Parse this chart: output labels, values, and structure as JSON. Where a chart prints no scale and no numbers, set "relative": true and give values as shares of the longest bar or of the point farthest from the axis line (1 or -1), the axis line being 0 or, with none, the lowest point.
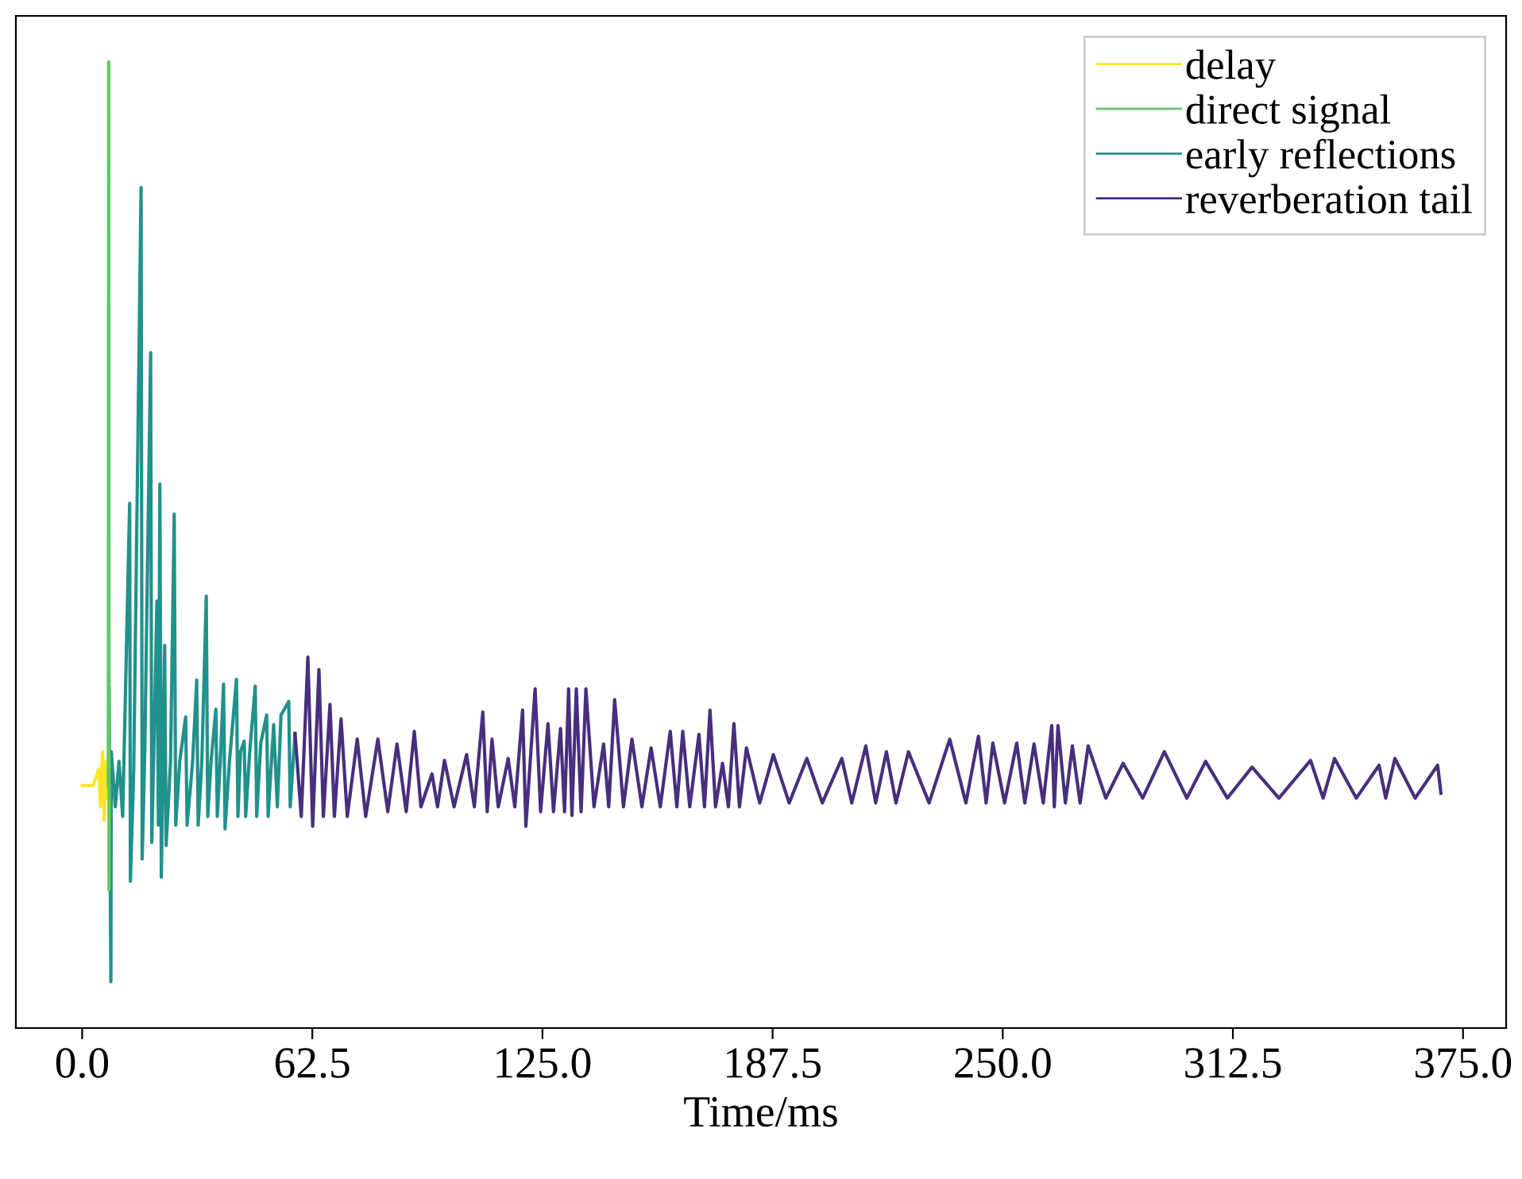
{
  "chart_data": {
    "type": "line",
    "relative": true,
    "xlabel": "Time/ms",
    "xlim": [
      -18,
      386.7
    ],
    "xticks": [
      {
        "value": 0,
        "label": "0.0"
      },
      {
        "value": 62.5,
        "label": "62.5"
      },
      {
        "value": 125,
        "label": "125.0"
      },
      {
        "value": 187.5,
        "label": "187.5"
      },
      {
        "value": 250,
        "label": "250.0"
      },
      {
        "value": 312.5,
        "label": "312.5"
      },
      {
        "value": 375,
        "label": "375.0"
      }
    ],
    "legend": "top right",
    "grid": false,
    "marker": "none",
    "line_style": "solid",
    "series": [
      {
        "name": "delay",
        "color": "#fde725",
        "x": [
          0,
          3,
          4.5,
          5,
          5.5,
          6,
          6.5,
          7
        ],
        "values": [
          0.251,
          0.251,
          0.268,
          0.229,
          0.286,
          0.215,
          0.276,
          0.238
        ]
      },
      {
        "name": "direct signal",
        "color": "#5ec962",
        "x": [
          7.1,
          7.2,
          7.3,
          7.4
        ],
        "values": [
          0.251,
          1.0,
          0.143,
          0.251
        ]
      },
      {
        "name": "early reflections",
        "color": "#21918c",
        "x": [
          7.3,
          7.8,
          7.9,
          9,
          10,
          11,
          12.9,
          13.1,
          14,
          16.0,
          16.3,
          17,
          18.6,
          18.9,
          19.5,
          20.3,
          20.7,
          21.1,
          21.5,
          22.4,
          22.8,
          24,
          25.0,
          25.4,
          26.5,
          28.1,
          28.5,
          30,
          31.1,
          31.5,
          32.5,
          33.7,
          34.1,
          35,
          36.3,
          36.7,
          37.5,
          38.4,
          38.8,
          40,
          41.9,
          42.3,
          43,
          44.0,
          44.4,
          45.5,
          47.0,
          47.4,
          48.5,
          50.1,
          50.5,
          52,
          53,
          54,
          56.1,
          56.5,
          57.8
        ],
        "values": [
          0.352,
          0.048,
          0.286,
          0.229,
          0.276,
          0.219,
          0.543,
          0.152,
          0.267,
          0.87,
          0.175,
          0.286,
          0.699,
          0.192,
          0.295,
          0.442,
          0.21,
          0.563,
          0.156,
          0.396,
          0.189,
          0.276,
          0.532,
          0.21,
          0.276,
          0.322,
          0.21,
          0.276,
          0.36,
          0.21,
          0.276,
          0.447,
          0.219,
          0.276,
          0.33,
          0.219,
          0.276,
          0.356,
          0.206,
          0.276,
          0.361,
          0.219,
          0.286,
          0.297,
          0.219,
          0.286,
          0.354,
          0.219,
          0.295,
          0.324,
          0.219,
          0.314,
          0.229,
          0.324,
          0.338,
          0.229,
          0.305
        ]
      },
      {
        "name": "reverberation tail",
        "color": "#472f7d",
        "x": [
          57.8,
          59.5,
          61.3,
          62.6,
          64.3,
          65.5,
          67.3,
          68.5,
          70.3,
          72,
          74.7,
          77,
          80.3,
          83,
          85.5,
          88,
          90.2,
          92,
          95,
          96.5,
          98.4,
          101,
          104.4,
          106.5,
          108.8,
          110,
          111.3,
          113,
          115.7,
          117.5,
          119.6,
          120.5,
          123,
          124.5,
          126.5,
          128,
          129.9,
          131,
          132.1,
          133,
          134.2,
          135.5,
          136.8,
          139,
          141.6,
          143,
          144.6,
          147,
          149.3,
          152,
          154.5,
          157,
          159.7,
          161.5,
          163.1,
          165,
          167.5,
          169,
          170.5,
          172,
          173.9,
          175.5,
          177,
          178.5,
          180.4,
          184,
          187.7,
          192,
          196.8,
          201,
          206.3,
          209,
          212.8,
          215.5,
          218.4,
          221,
          224.4,
          230,
          235.6,
          240,
          243.4,
          245.5,
          247.3,
          250.5,
          253.8,
          256,
          258.5,
          261,
          263.3,
          264,
          265,
          267,
          268.9,
          271,
          273.2,
          278,
          282.7,
          288,
          293.9,
          300,
          305.1,
          311,
          317.7,
          325,
          333.6,
          337,
          340.1,
          346,
          352.2,
          354,
          356.5,
          362,
          368.1,
          369
        ],
        "values": [
          0.305,
          0.219,
          0.384,
          0.209,
          0.371,
          0.219,
          0.335,
          0.219,
          0.32,
          0.219,
          0.299,
          0.219,
          0.299,
          0.224,
          0.294,
          0.224,
          0.307,
          0.229,
          0.263,
          0.229,
          0.277,
          0.229,
          0.283,
          0.229,
          0.327,
          0.224,
          0.299,
          0.229,
          0.279,
          0.229,
          0.329,
          0.209,
          0.351,
          0.224,
          0.315,
          0.224,
          0.31,
          0.224,
          0.351,
          0.22,
          0.351,
          0.224,
          0.351,
          0.229,
          0.294,
          0.229,
          0.34,
          0.229,
          0.299,
          0.229,
          0.29,
          0.229,
          0.307,
          0.229,
          0.307,
          0.229,
          0.304,
          0.229,
          0.329,
          0.229,
          0.274,
          0.229,
          0.315,
          0.229,
          0.29,
          0.233,
          0.283,
          0.233,
          0.279,
          0.233,
          0.279,
          0.233,
          0.292,
          0.233,
          0.286,
          0.233,
          0.286,
          0.233,
          0.299,
          0.233,
          0.302,
          0.233,
          0.295,
          0.233,
          0.295,
          0.233,
          0.294,
          0.233,
          0.313,
          0.229,
          0.313,
          0.233,
          0.292,
          0.233,
          0.292,
          0.238,
          0.274,
          0.238,
          0.286,
          0.238,
          0.276,
          0.238,
          0.27,
          0.238,
          0.277,
          0.238,
          0.279,
          0.238,
          0.272,
          0.238,
          0.279,
          0.238,
          0.272,
          0.243
        ]
      }
    ]
  }
}
